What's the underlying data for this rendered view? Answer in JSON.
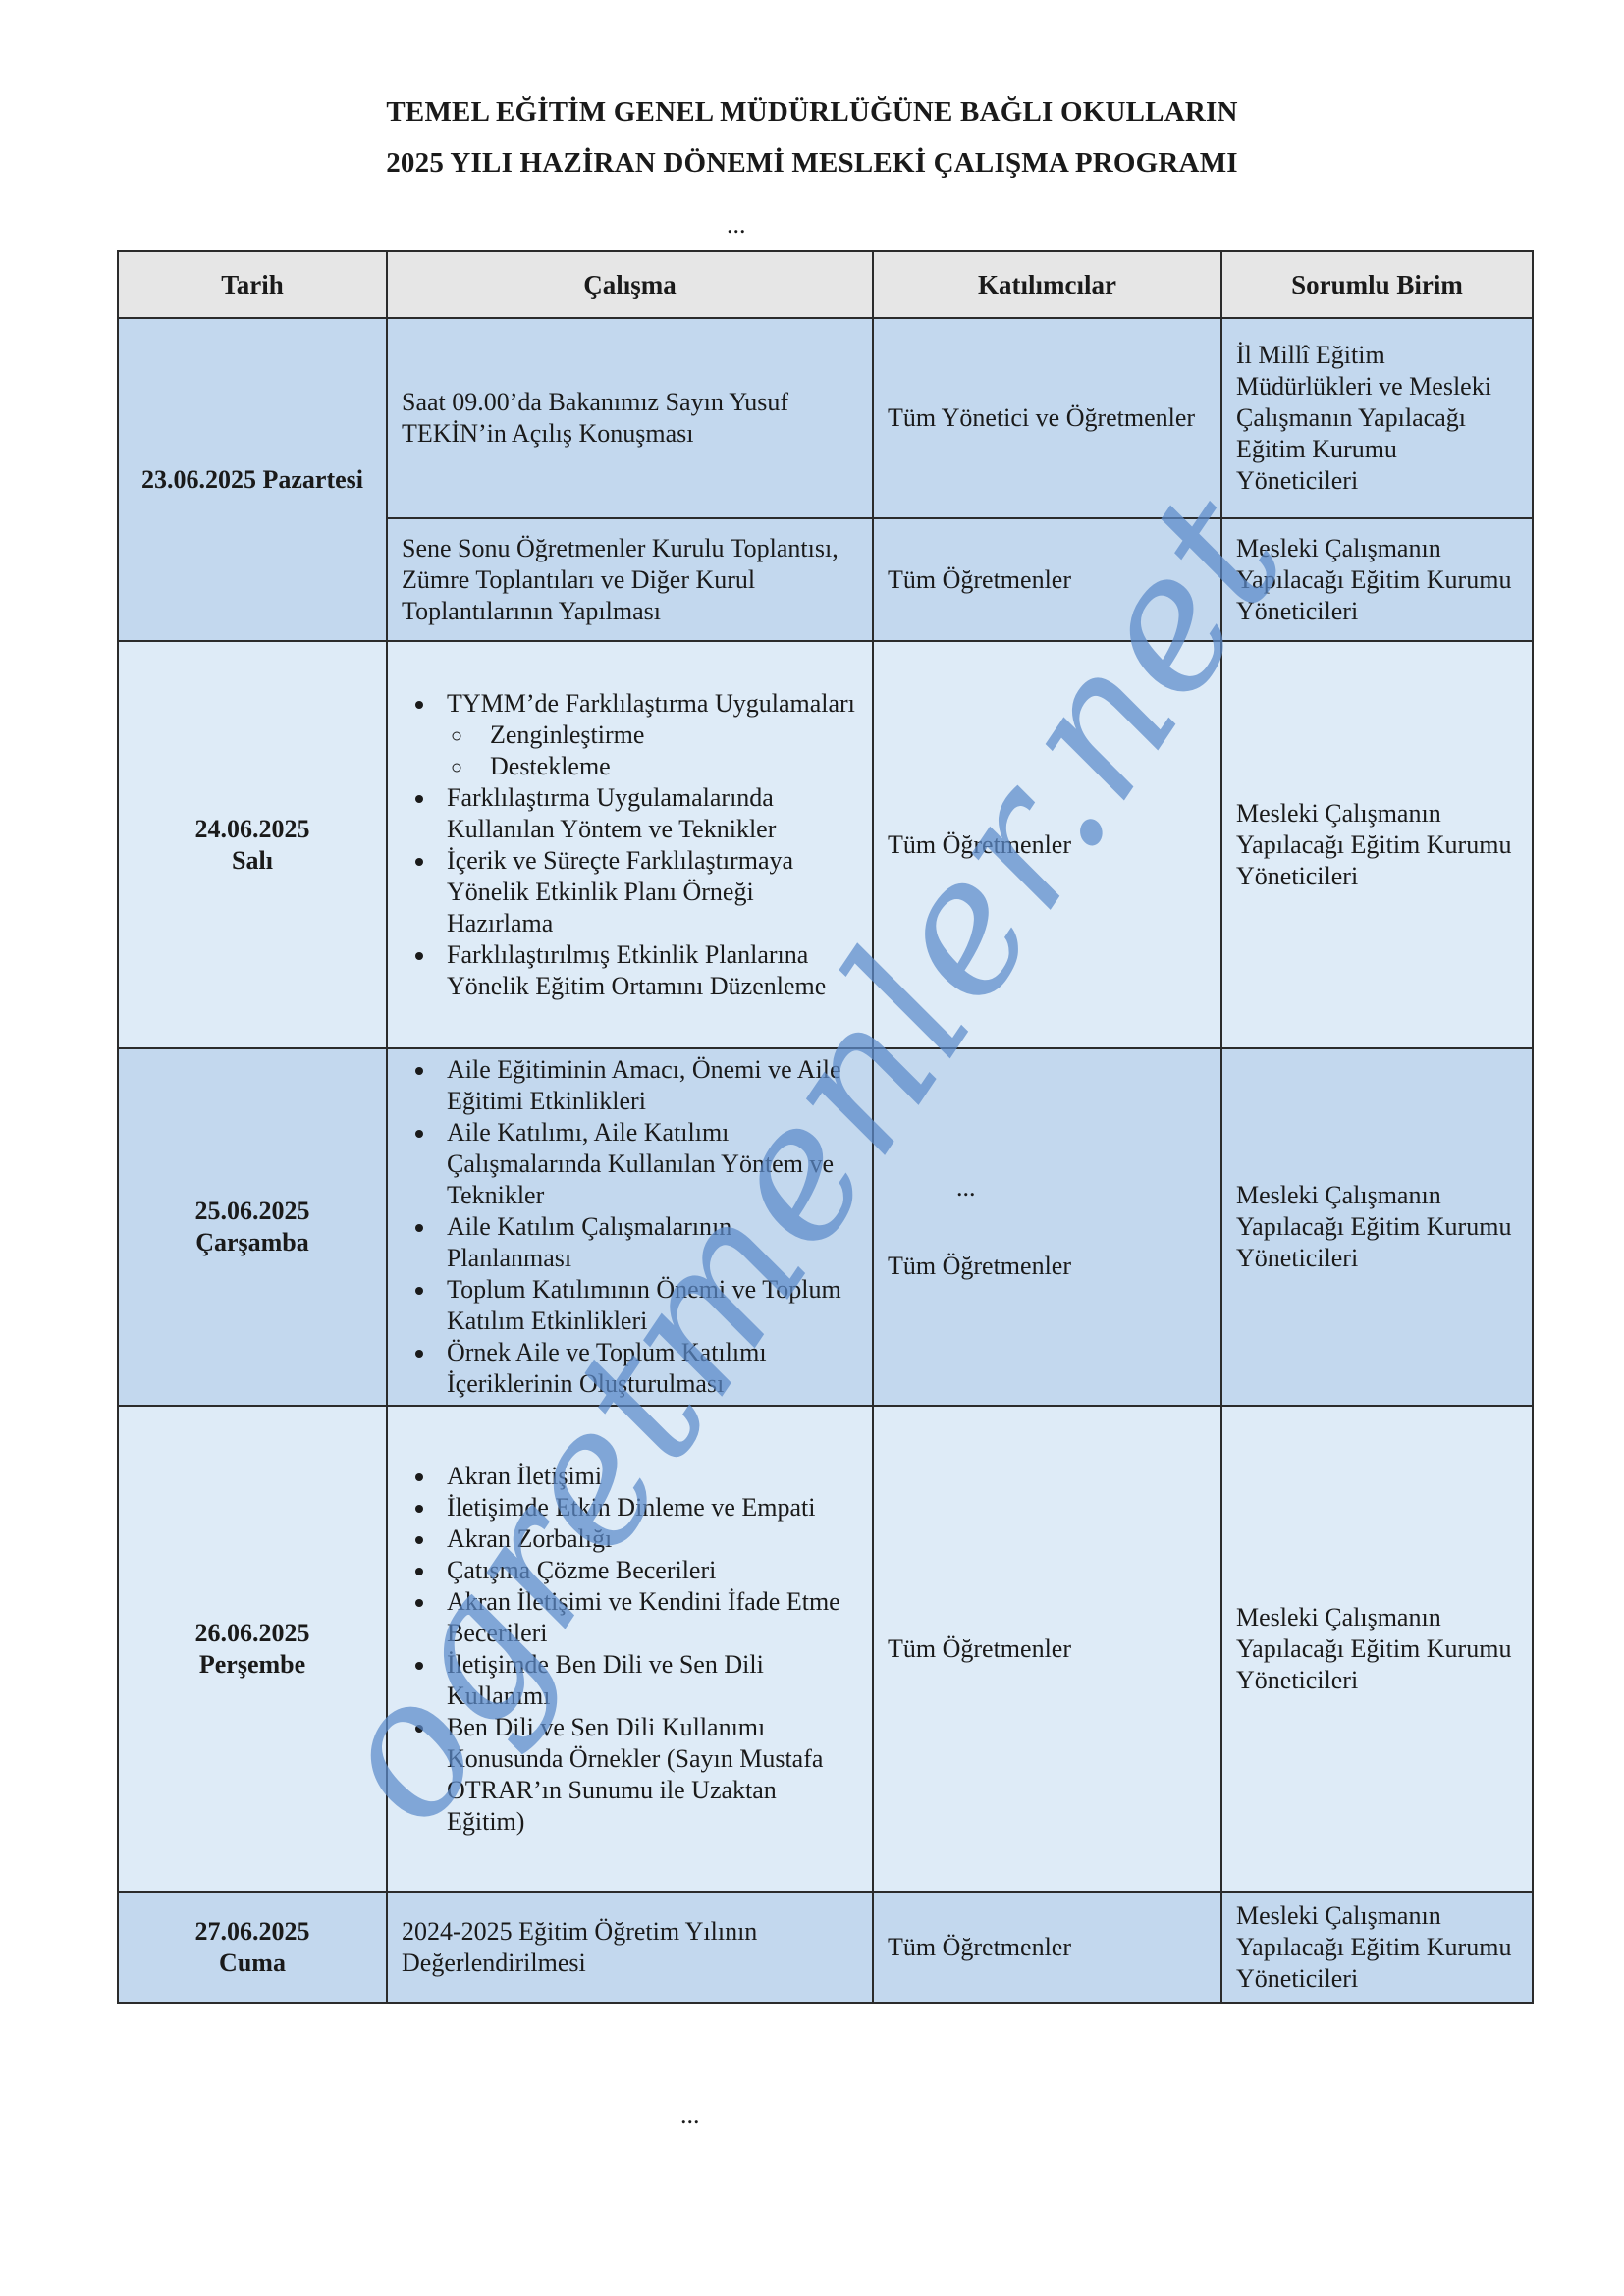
{
  "title_line1": "TEMEL EĞİTİM GENEL MÜDÜRLÜĞÜNE BAĞLI OKULLARIN",
  "title_line2": "2025 YILI HAZİRAN DÖNEMİ MESLEKİ ÇALIŞMA PROGRAMI",
  "ellipsis_top": "...",
  "ellipsis_bottom": "...",
  "watermark": "ogretmenler.net",
  "table": {
    "headers": [
      "Tarih",
      "Çalışma",
      "Katılımcılar",
      "Sorumlu Birim"
    ],
    "rows": [
      {
        "date": "23.06.2025 Pazartesi",
        "calisma": "Saat 09.00’da Bakanımız Sayın Yusuf TEKİN’in Açılış Konuşması",
        "katilimcilar": "Tüm Yönetici ve Öğretmenler",
        "sorumlu": "İl Millî Eğitim Müdürlükleri ve Mesleki Çalışmanın Yapılacağı Eğitim Kurumu Yöneticileri"
      },
      {
        "calisma": "Sene Sonu Öğretmenler Kurulu Toplantısı, Zümre Toplantıları ve Diğer Kurul Toplantılarının Yapılması",
        "katilimcilar": "Tüm Öğretmenler",
        "sorumlu": "Mesleki Çalışmanın Yapılacağı Eğitim Kurumu Yöneticileri"
      },
      {
        "date_line1": "24.06.2025",
        "date_line2": "Salı",
        "items": [
          "TYMM’de Farklılaştırma Uygulamaları",
          "Farklılaştırma Uygulamalarında Kullanılan Yöntem ve Teknikler",
          "İçerik ve Süreçte Farklılaştırmaya Yönelik Etkinlik Planı Örneği Hazırlama",
          "Farklılaştırılmış Etkinlik Planlarına Yönelik Eğitim Ortamını Düzenleme"
        ],
        "subitems": [
          "Zenginleştirme",
          "Destekleme"
        ],
        "katilimcilar": "Tüm Öğretmenler",
        "sorumlu": "Mesleki Çalışmanın Yapılacağı Eğitim Kurumu Yöneticileri"
      },
      {
        "date_line1": "25.06.2025",
        "date_line2": "Çarşamba",
        "items": [
          "Aile Eğitiminin Amacı, Önemi ve Aile Eğitimi Etkinlikleri",
          "Aile Katılımı, Aile Katılımı Çalışmalarında Kullanılan Yöntem ve Teknikler",
          "Aile Katılım Çalışmalarının Planlanması",
          "Toplum Katılımının Önemi ve Toplum Katılım Etkinlikleri",
          "Örnek Aile ve Toplum Katılımı İçeriklerinin Oluşturulması"
        ],
        "katilimcilar_dots": "...",
        "katilimcilar": "Tüm Öğretmenler",
        "sorumlu": "Mesleki Çalışmanın Yapılacağı Eğitim Kurumu Yöneticileri"
      },
      {
        "date_line1": "26.06.2025",
        "date_line2": "Perşembe",
        "items": [
          "Akran İletişimi",
          "İletişimde Etkin Dinleme ve Empati",
          "Akran Zorbalığı",
          "Çatışma Çözme Becerileri",
          "Akran İletişimi ve Kendini İfade Etme Becerileri",
          "İletişimde Ben Dili ve Sen Dili Kullanımı",
          "Ben Dili ve Sen Dili Kullanımı Konusunda Örnekler (Sayın Mustafa OTRAR’ın Sunumu ile Uzaktan Eğitim)"
        ],
        "katilimcilar": "Tüm Öğretmenler",
        "sorumlu": "Mesleki Çalışmanın Yapılacağı Eğitim Kurumu Yöneticileri"
      },
      {
        "date_line1": "27.06.2025",
        "date_line2": "Cuma",
        "calisma": "2024-2025 Eğitim Öğretim Yılının Değerlendirilmesi",
        "katilimcilar": "Tüm Öğretmenler",
        "sorumlu": "Mesleki Çalışmanın Yapılacağı Eğitim Kurumu Yöneticileri"
      }
    ]
  }
}
